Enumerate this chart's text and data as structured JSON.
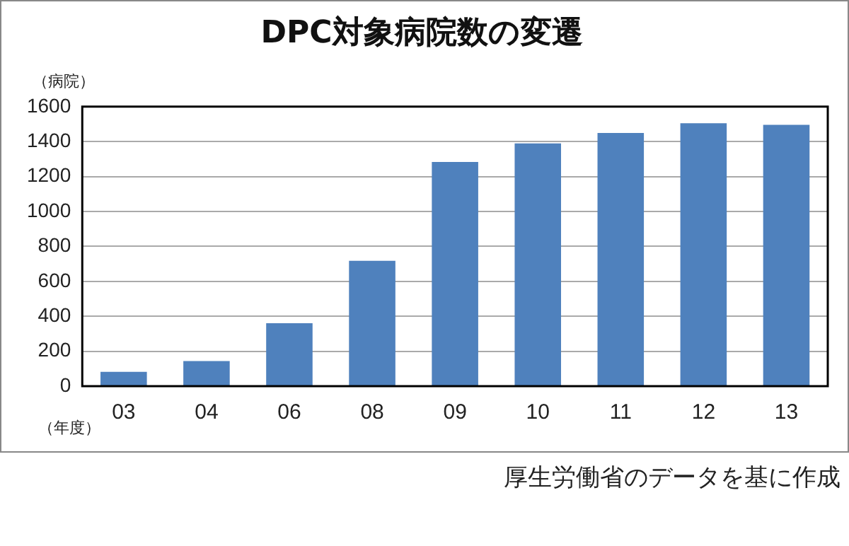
{
  "chart_data": {
    "type": "bar",
    "title": "DPC対象病院数の変遷",
    "ylabel": "（病院）",
    "xlabel": "（年度）",
    "categories": [
      "03",
      "04",
      "06",
      "08",
      "09",
      "10",
      "11",
      "12",
      "13"
    ],
    "values": [
      82,
      144,
      360,
      718,
      1283,
      1390,
      1449,
      1505,
      1496
    ],
    "color": "#4f81bd",
    "ylim": [
      0,
      1600
    ],
    "yticks": [
      0,
      200,
      400,
      600,
      800,
      1000,
      1200,
      1400,
      1600
    ],
    "grid": "y",
    "legend": false,
    "annotations": [
      "厚生労働省のデータを基に作成"
    ]
  }
}
